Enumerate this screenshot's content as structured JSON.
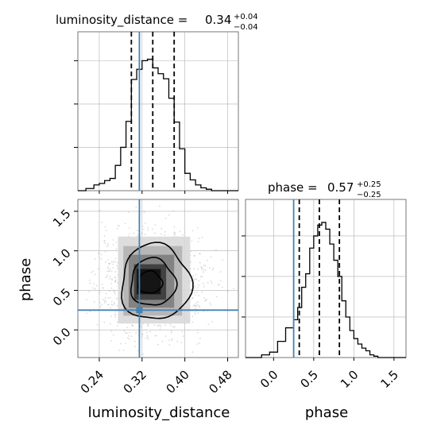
{
  "chart_data": {
    "type": "corner",
    "params": [
      "luminosity_distance",
      "phase"
    ],
    "truths": {
      "luminosity_distance": 0.315,
      "phase": 0.25
    },
    "colors": {
      "truth": "#4682b4",
      "hist": "#000000",
      "grid": "#b0b0b0",
      "scatter": "#bdbdbd"
    },
    "titles": {
      "luminosity_distance": {
        "prefix": "luminosity_distance = ",
        "value": "0.34",
        "plus": "+0.04",
        "minus": "−0.04"
      },
      "phase": {
        "prefix": "phase = ",
        "value": "0.57",
        "plus": "+0.25",
        "minus": "−0.25"
      }
    },
    "axis_labels": {
      "x_left": "luminosity_distance",
      "x_right": "phase",
      "y_left": "phase"
    },
    "ranges": {
      "luminosity_distance": [
        0.2,
        0.5
      ],
      "phase": [
        -0.35,
        1.65
      ]
    },
    "xticks_dist": {
      "values": [
        0.24,
        0.32,
        0.4,
        0.48
      ],
      "labels": [
        "0.24",
        "0.32",
        "0.40",
        "0.48"
      ]
    },
    "ticks_phase": {
      "values": [
        0.0,
        0.5,
        1.0,
        1.5
      ],
      "labels": [
        "0.0",
        "0.5",
        "1.0",
        "1.5"
      ]
    },
    "hist_dist": {
      "edges": [
        0.2,
        0.215,
        0.23,
        0.24,
        0.25,
        0.26,
        0.27,
        0.28,
        0.29,
        0.3,
        0.31,
        0.32,
        0.33,
        0.34,
        0.35,
        0.36,
        0.37,
        0.38,
        0.39,
        0.4,
        0.41,
        0.42,
        0.43,
        0.44,
        0.45,
        0.46,
        0.47,
        0.48,
        0.5
      ],
      "counts": [
        0,
        3,
        8,
        10,
        14,
        17,
        35,
        60,
        96,
        154,
        168,
        180,
        182,
        170,
        162,
        155,
        128,
        95,
        58,
        24,
        15,
        8,
        4,
        2,
        0,
        0,
        0,
        0
      ],
      "quantiles": [
        0.3,
        0.34,
        0.38
      ],
      "ylim": [
        0,
        220
      ],
      "yticks": [
        60,
        120,
        180
      ]
    },
    "hist_phase": {
      "edges": [
        -0.35,
        -0.15,
        -0.05,
        0.05,
        0.15,
        0.25,
        0.3,
        0.35,
        0.4,
        0.45,
        0.5,
        0.55,
        0.6,
        0.65,
        0.7,
        0.75,
        0.8,
        0.85,
        0.9,
        0.95,
        1.0,
        1.05,
        1.1,
        1.15,
        1.2,
        1.25,
        1.3,
        1.4,
        1.65
      ],
      "counts": [
        0,
        2,
        4,
        12,
        22,
        28,
        37,
        52,
        62,
        81,
        90,
        98,
        100,
        95,
        84,
        72,
        60,
        42,
        30,
        20,
        14,
        10,
        7,
        5,
        2,
        1,
        0,
        0
      ],
      "quantiles": [
        0.32,
        0.57,
        0.82
      ],
      "ylim": [
        0,
        117
      ],
      "yticks": [
        30,
        60,
        90
      ]
    },
    "density_2d": {
      "cells": [
        {
          "x": [
            0.31,
            0.355
          ],
          "y": [
            0.45,
            0.77
          ],
          "shade": "#111111"
        },
        {
          "x": [
            0.305,
            0.365
          ],
          "y": [
            0.38,
            0.83
          ],
          "shade": "#3a3a3a"
        },
        {
          "x": [
            0.295,
            0.38
          ],
          "y": [
            0.28,
            0.95
          ],
          "shade": "#7d7d7d"
        },
        {
          "x": [
            0.285,
            0.395
          ],
          "y": [
            0.18,
            1.06
          ],
          "shade": "#b2b2b2"
        },
        {
          "x": [
            0.275,
            0.41
          ],
          "y": [
            0.08,
            1.18
          ],
          "shade": "#d9d9d9"
        }
      ],
      "contours": [
        {
          "cx": 0.335,
          "cy": 0.6,
          "rx": 0.022,
          "ry": 0.14
        },
        {
          "cx": 0.34,
          "cy": 0.6,
          "rx": 0.042,
          "ry": 0.3
        },
        {
          "cx": 0.345,
          "cy": 0.6,
          "rx": 0.065,
          "ry": 0.48
        }
      ],
      "scatter": {
        "center": [
          0.34,
          0.58
        ],
        "spread": [
          0.048,
          0.32
        ],
        "count": 1500
      }
    }
  }
}
